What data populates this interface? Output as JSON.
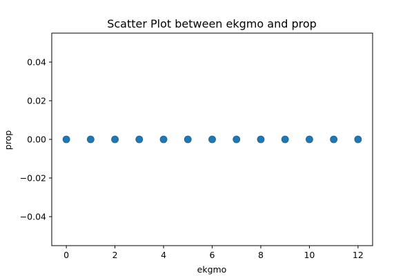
{
  "chart_data": {
    "type": "scatter",
    "title": "Scatter Plot between ekgmo and prop",
    "xlabel": "ekgmo",
    "ylabel": "prop",
    "x": [
      0,
      1,
      2,
      3,
      4,
      5,
      6,
      7,
      8,
      9,
      10,
      11,
      12
    ],
    "y": [
      0,
      0,
      0,
      0,
      0,
      0,
      0,
      0,
      0,
      0,
      0,
      0,
      0
    ],
    "xlim": [
      -0.6,
      12.6
    ],
    "ylim": [
      -0.055,
      0.055
    ],
    "xticks": [
      0,
      2,
      4,
      6,
      8,
      10,
      12
    ],
    "xtick_labels": [
      "0",
      "2",
      "4",
      "6",
      "8",
      "10",
      "12"
    ],
    "yticks": [
      -0.04,
      -0.02,
      0.0,
      0.02,
      0.04
    ],
    "ytick_labels": [
      "−0.04",
      "−0.02",
      "0.00",
      "0.02",
      "0.04"
    ],
    "grid": false,
    "legend": "none",
    "color": "#1f77b4"
  }
}
